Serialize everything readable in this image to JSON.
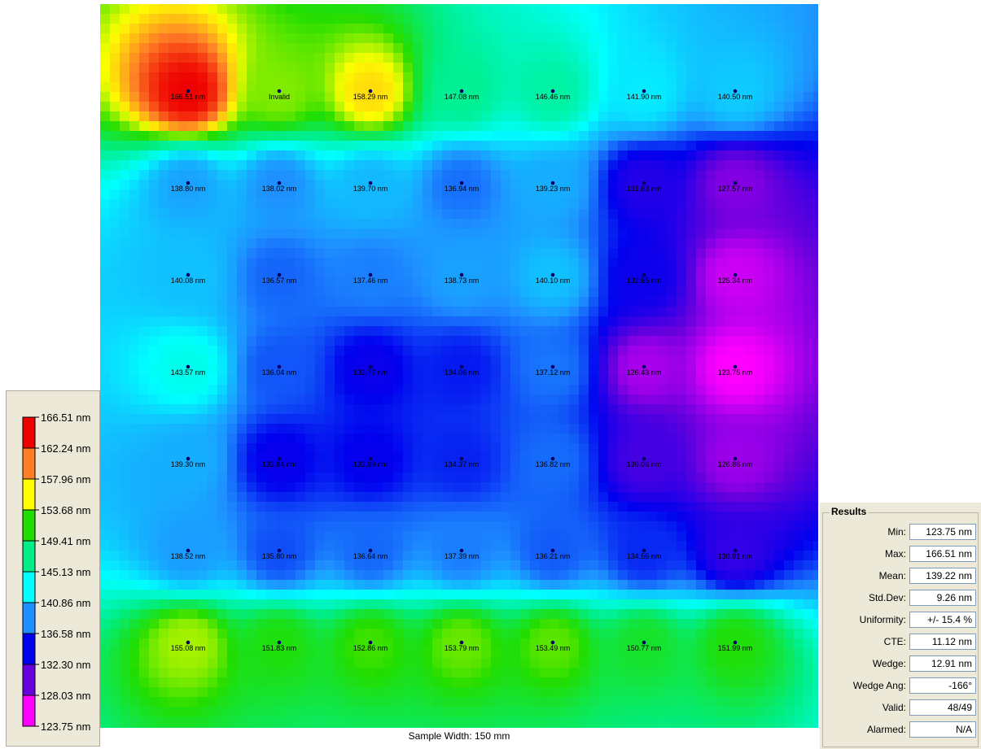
{
  "chart_data": {
    "type": "heatmap",
    "unit": "nm",
    "grid": {
      "rows": 7,
      "cols": 7,
      "labels": [
        [
          "166.51 nm",
          "Invalid",
          "158.29 nm",
          "147.08 nm",
          "146.46 nm",
          "141.90 nm",
          "140.50 nm"
        ],
        [
          "138.80 nm",
          "138.02 nm",
          "139.70 nm",
          "136.94 nm",
          "139.23 nm",
          "131.63 nm",
          "127.57 nm"
        ],
        [
          "140.08 nm",
          "136.57 nm",
          "137.46 nm",
          "138.73 nm",
          "140.10 nm",
          "132.65 nm",
          "125.34 nm"
        ],
        [
          "143.57 nm",
          "136.04 nm",
          "132.77 nm",
          "134.06 nm",
          "137.12 nm",
          "126.43 nm",
          "123.75 nm"
        ],
        [
          "139.30 nm",
          "132.84 nm",
          "132.99 nm",
          "134.37 nm",
          "136.82 nm",
          "130.06 nm",
          "126.86 nm"
        ],
        [
          "138.52 nm",
          "135.80 nm",
          "136.64 nm",
          "137.39 nm",
          "136.21 nm",
          "134.56 nm",
          "130.91 nm"
        ],
        [
          "155.08 nm",
          "151.83 nm",
          "152.86 nm",
          "153.79 nm",
          "153.49 nm",
          "150.77 nm",
          "151.99 nm"
        ]
      ],
      "values": [
        [
          166.51,
          null,
          158.29,
          147.08,
          146.46,
          141.9,
          140.5
        ],
        [
          138.8,
          138.02,
          139.7,
          136.94,
          139.23,
          131.63,
          127.57
        ],
        [
          140.08,
          136.57,
          137.46,
          138.73,
          140.1,
          132.65,
          125.34
        ],
        [
          143.57,
          136.04,
          132.77,
          134.06,
          137.12,
          126.43,
          123.75
        ],
        [
          139.3,
          132.84,
          132.99,
          134.37,
          136.82,
          130.06,
          126.86
        ],
        [
          138.52,
          135.8,
          136.64,
          137.39,
          136.21,
          134.56,
          130.91
        ],
        [
          155.08,
          151.83,
          152.86,
          153.79,
          153.49,
          150.77,
          151.99
        ]
      ]
    },
    "legend": {
      "ticks": [
        "166.51 nm",
        "162.24 nm",
        "157.96 nm",
        "153.68 nm",
        "149.41 nm",
        "145.13 nm",
        "140.86 nm",
        "136.58 nm",
        "132.30 nm",
        "128.03 nm",
        "123.75 nm"
      ],
      "colors": [
        "#ee0000",
        "#ff7f27",
        "#ffff00",
        "#22dd00",
        "#00ee88",
        "#00ffff",
        "#1e90ff",
        "#0000ee",
        "#6600dd",
        "#ff00ff"
      ],
      "min": 123.75,
      "max": 166.51
    },
    "xlabel": "Sample Width: 150 mm"
  },
  "results": {
    "title": "Results",
    "rows": [
      {
        "label": "Min:",
        "value": "123.75 nm"
      },
      {
        "label": "Max:",
        "value": "166.51 nm"
      },
      {
        "label": "Mean:",
        "value": "139.22 nm"
      },
      {
        "label": "Std.Dev:",
        "value": "9.26 nm"
      },
      {
        "label": "Uniformity:",
        "value": "+/- 15.4 %"
      },
      {
        "label": "CTE:",
        "value": "11.12 nm"
      },
      {
        "label": "Wedge:",
        "value": "12.91 nm"
      },
      {
        "label": "Wedge Ang:",
        "value": "-166°"
      },
      {
        "label": "Valid:",
        "value": "48/49"
      },
      {
        "label": "Alarmed:",
        "value": "N/A"
      }
    ]
  }
}
